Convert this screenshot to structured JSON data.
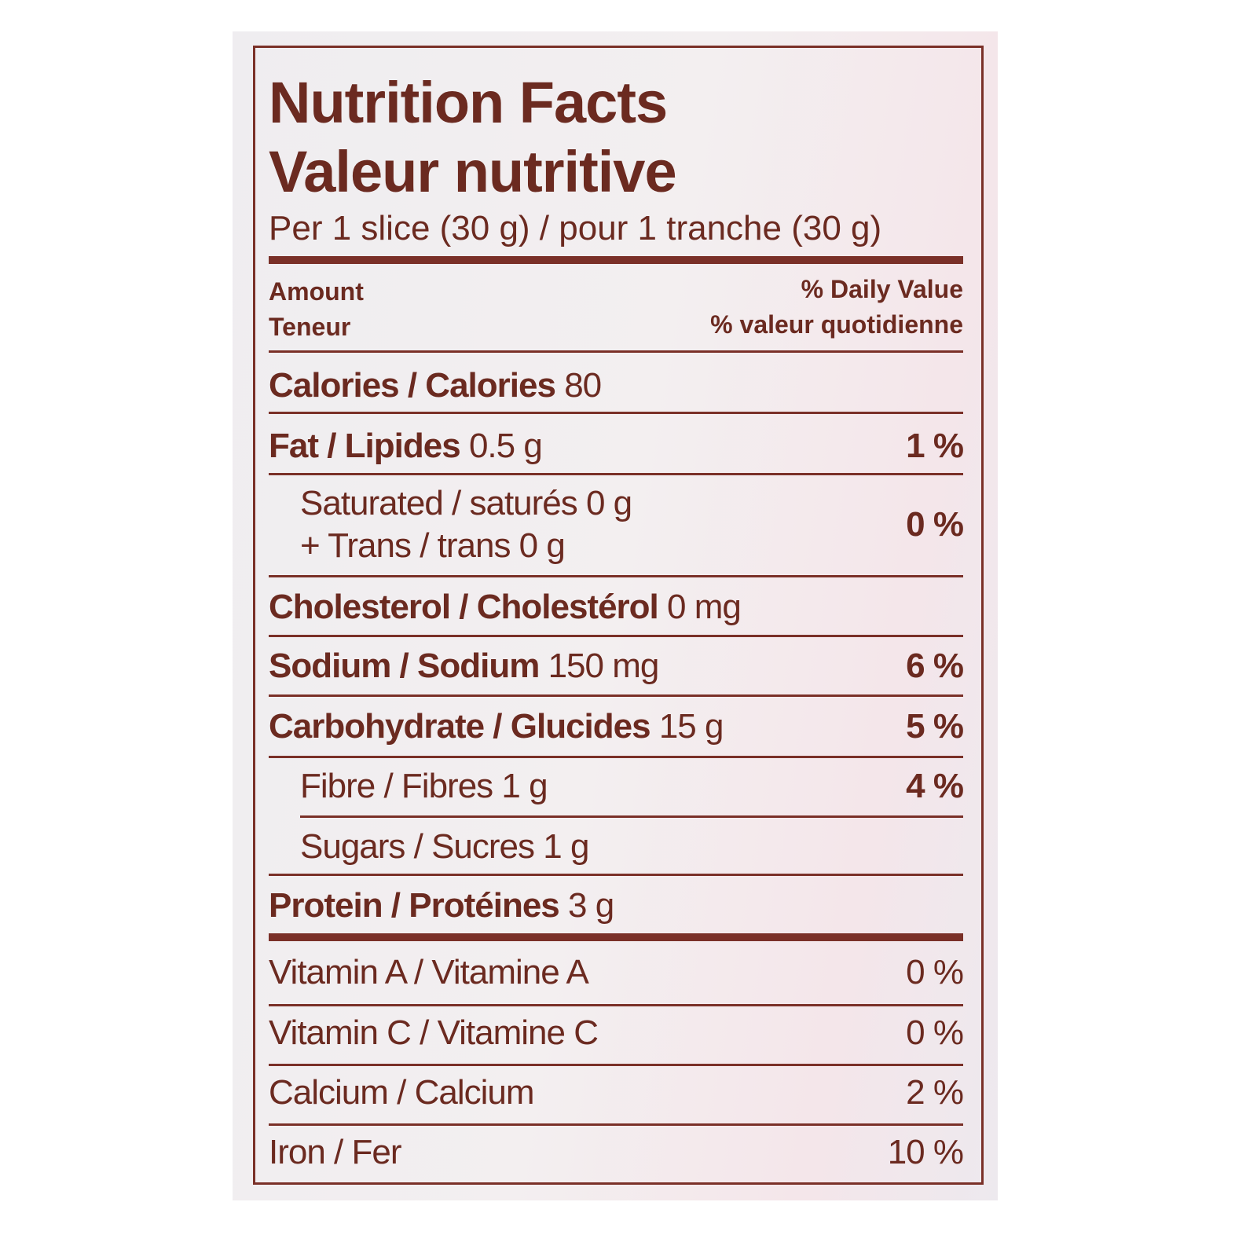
{
  "title_en": "Nutrition Facts",
  "title_fr": "Valeur nutritive",
  "serving": "Per 1 slice (30 g) / pour 1 tranche (30 g)",
  "header": {
    "amount": "Amount",
    "teneur": "Teneur",
    "dv_en": "% Daily Value",
    "dv_fr": "% valeur quotidienne"
  },
  "rows": {
    "calories": {
      "label": "Calories / Calories",
      "amount": "80"
    },
    "fat": {
      "label": "Fat / Lipides",
      "amount": "0.5 g",
      "dv": "1 %"
    },
    "saturated": {
      "label": "Saturated / saturés 0 g",
      "dv": "0 %"
    },
    "trans": {
      "label": "+ Trans / trans 0 g"
    },
    "cholesterol": {
      "label": "Cholesterol / Cholestérol",
      "amount": "0 mg"
    },
    "sodium": {
      "label": "Sodium / Sodium",
      "amount": "150 mg",
      "dv": "6 %"
    },
    "carbohydrate": {
      "label": "Carbohydrate / Glucides",
      "amount": "15 g",
      "dv": "5 %"
    },
    "fibre": {
      "label": "Fibre / Fibres 1 g",
      "dv": "4 %"
    },
    "sugars": {
      "label": "Sugars / Sucres 1 g"
    },
    "protein": {
      "label": "Protein / Protéines",
      "amount": "3 g"
    },
    "vitamin_a": {
      "label": "Vitamin A / Vitamine A",
      "dv": "0 %"
    },
    "vitamin_c": {
      "label": "Vitamin C / Vitamine C",
      "dv": "0 %"
    },
    "calcium": {
      "label": "Calcium / Calcium",
      "dv": "2 %"
    },
    "iron": {
      "label": "Iron / Fer",
      "dv": "10 %"
    }
  },
  "colors": {
    "ink": "#6b2a20",
    "panel": "#f1eef0"
  }
}
